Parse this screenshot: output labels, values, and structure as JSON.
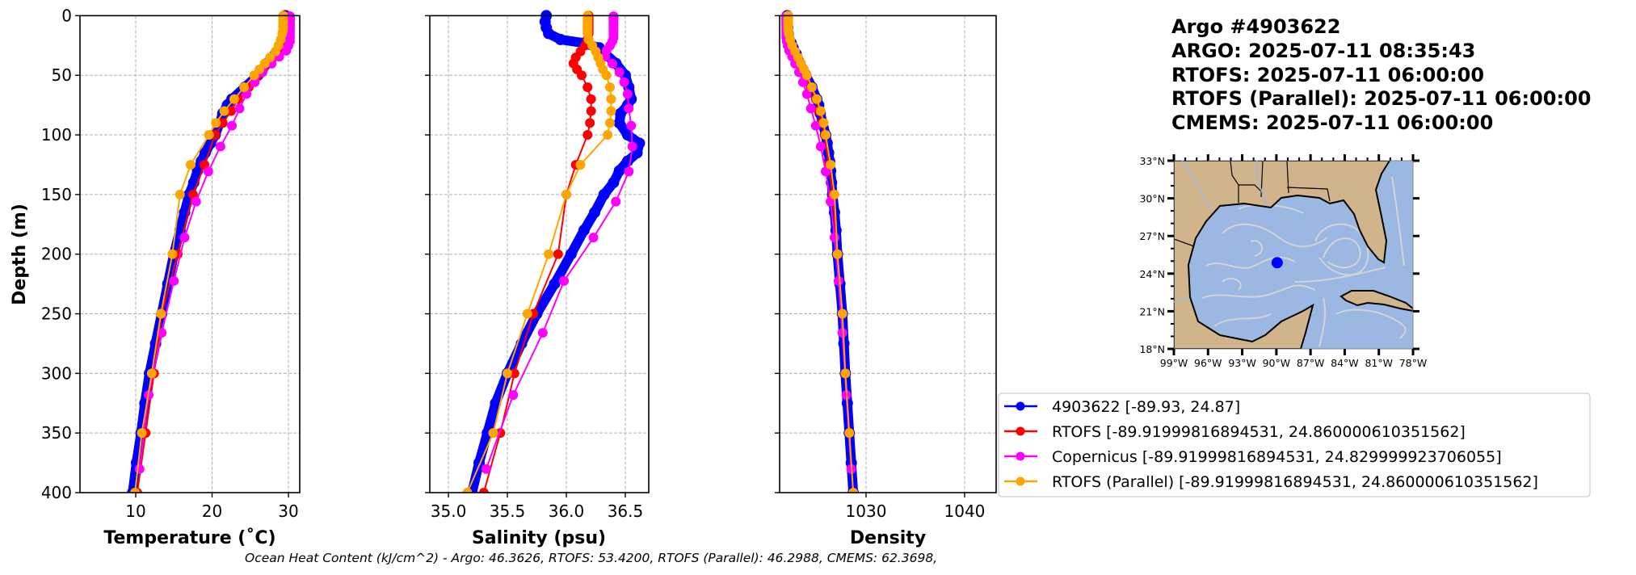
{
  "chart_data": {
    "type": "line",
    "title_lines": [
      "Argo #4903622",
      "ARGO:  2025-07-11 08:35:43",
      "RTOFS: 2025-07-11 06:00:00",
      "RTOFS (Parallel): 2025-07-11 06:00:00",
      "CMEMS: 2025-07-11 06:00:00"
    ],
    "ylabel": "Depth (m)",
    "ylim": [
      400,
      0
    ],
    "yticks": [
      0,
      50,
      100,
      150,
      200,
      250,
      300,
      350,
      400
    ],
    "ytick_labels": [
      "0",
      "50",
      "100",
      "150",
      "200",
      "250",
      "300",
      "350",
      "400"
    ],
    "grid": true,
    "panels": [
      {
        "variable": "temperature",
        "xlabel": "Temperature (˚C)",
        "xlim": [
          2.7,
          31.48
        ],
        "xticks": [
          10,
          20,
          30
        ],
        "xtick_labels": [
          "10",
          "20",
          "30"
        ]
      },
      {
        "variable": "salinity",
        "xlabel": "Salinity (psu)",
        "xlim": [
          34.842,
          36.699
        ],
        "xticks": [
          35.0,
          35.5,
          36.0,
          36.5
        ],
        "xtick_labels": [
          "35.0",
          "35.5",
          "36.0",
          "36.5"
        ]
      },
      {
        "variable": "density",
        "xlabel": "Density",
        "xlim": [
          1021.23,
          1043.2
        ],
        "xticks": [
          1030,
          1040
        ],
        "xtick_labels": [
          "1030",
          "1040"
        ]
      }
    ],
    "legend_placement": "lower-right",
    "series": [
      {
        "name": "Argo",
        "legend_label": "4903622 [-89.93, 24.87]",
        "color": "#0000ff",
        "depth": [
          0,
          5,
          10,
          15,
          20,
          23,
          27,
          32,
          40,
          50,
          60,
          70,
          75,
          82,
          90,
          100,
          107,
          115,
          122,
          130,
          140,
          150,
          165,
          180,
          200,
          225,
          250,
          275,
          300,
          325,
          350,
          375,
          400
        ],
        "temperature": [
          29.6,
          29.6,
          29.6,
          29.5,
          29.4,
          29.2,
          28.9,
          28.3,
          27.2,
          26.0,
          24.3,
          22.6,
          22.0,
          21.4,
          21.0,
          20.4,
          19.8,
          19.1,
          18.6,
          18.1,
          17.6,
          17.0,
          16.4,
          15.8,
          15.0,
          14.2,
          13.4,
          12.6,
          11.8,
          11.2,
          10.7,
          10.1,
          9.6
        ],
        "salinity": [
          35.83,
          35.82,
          35.83,
          35.85,
          35.95,
          36.15,
          36.28,
          36.33,
          36.42,
          36.5,
          36.53,
          36.55,
          36.52,
          36.46,
          36.45,
          36.52,
          36.62,
          36.6,
          36.52,
          36.45,
          36.4,
          36.32,
          36.24,
          36.15,
          36.04,
          35.9,
          35.75,
          35.62,
          35.5,
          35.4,
          35.33,
          35.26,
          35.2
        ],
        "density": [
          1022.0,
          1022.0,
          1022.05,
          1022.1,
          1022.2,
          1022.4,
          1022.6,
          1022.9,
          1023.3,
          1023.9,
          1024.5,
          1025.0,
          1025.2,
          1025.35,
          1025.6,
          1025.9,
          1026.05,
          1026.2,
          1026.3,
          1026.4,
          1026.5,
          1026.6,
          1026.8,
          1026.95,
          1027.1,
          1027.35,
          1027.6,
          1027.75,
          1027.9,
          1028.1,
          1028.3,
          1028.5,
          1028.7
        ]
      },
      {
        "name": "RTOFS",
        "legend_label": "RTOFS [-89.91999816894531, 24.860000610351562]",
        "color": "#ff0000",
        "depth": [
          0,
          2,
          4,
          6,
          8,
          10,
          12,
          15,
          20,
          25,
          30,
          35,
          40,
          45,
          50,
          60,
          70,
          80,
          90,
          100,
          125,
          150,
          200,
          250,
          300,
          350,
          400
        ],
        "temperature": [
          29.4,
          29.4,
          29.4,
          29.4,
          29.4,
          29.4,
          29.4,
          29.3,
          29.2,
          29.0,
          28.6,
          28.0,
          27.3,
          26.7,
          26.0,
          24.8,
          23.4,
          22.5,
          21.4,
          20.4,
          19.0,
          17.5,
          15.5,
          13.4,
          12.4,
          11.3,
          10.2
        ],
        "salinity": [
          36.19,
          36.19,
          36.19,
          36.19,
          36.19,
          36.19,
          36.19,
          36.19,
          36.18,
          36.16,
          36.12,
          36.08,
          36.06,
          36.09,
          36.13,
          36.18,
          36.21,
          36.21,
          36.2,
          36.18,
          36.08,
          36.0,
          35.93,
          35.72,
          35.56,
          35.44,
          35.3
        ],
        "density": [
          1022.1,
          1022.1,
          1022.1,
          1022.1,
          1022.1,
          1022.1,
          1022.1,
          1022.15,
          1022.25,
          1022.4,
          1022.65,
          1022.95,
          1023.3,
          1023.6,
          1023.9,
          1024.4,
          1024.9,
          1025.2,
          1025.5,
          1025.8,
          1026.2,
          1026.6,
          1027.1,
          1027.6,
          1027.9,
          1028.3,
          1028.7
        ]
      },
      {
        "name": "Copernicus",
        "legend_label": "Copernicus [-89.91999816894531, 24.829999923706055]",
        "color": "#ff00ff",
        "depth": [
          0.5,
          1.5,
          2.6,
          3.8,
          5.1,
          6.4,
          7.9,
          9.6,
          11.4,
          13.5,
          15.8,
          18.5,
          21.6,
          25.2,
          29.4,
          34.4,
          40.3,
          47.4,
          55.8,
          65.8,
          77.9,
          92.3,
          109.7,
          130.7,
          155.9,
          186.1,
          222.5,
          266.0,
          318.1,
          380.2
        ],
        "temperature": [
          30.2,
          30.2,
          30.2,
          30.2,
          30.2,
          30.2,
          30.2,
          30.2,
          30.2,
          30.2,
          30.2,
          30.2,
          30.2,
          30.0,
          29.7,
          28.8,
          27.8,
          26.6,
          25.6,
          24.5,
          23.6,
          22.6,
          21.1,
          19.5,
          17.9,
          16.4,
          15.0,
          13.4,
          11.7,
          10.5
        ],
        "salinity": [
          36.4,
          36.4,
          36.4,
          36.4,
          36.4,
          36.4,
          36.4,
          36.4,
          36.4,
          36.4,
          36.4,
          36.4,
          36.39,
          36.37,
          36.34,
          36.33,
          36.39,
          36.45,
          36.49,
          36.52,
          36.53,
          36.55,
          36.56,
          36.53,
          36.42,
          36.23,
          35.98,
          35.8,
          35.55,
          35.32
        ],
        "density": [
          1021.9,
          1021.9,
          1021.9,
          1021.9,
          1021.9,
          1021.9,
          1021.9,
          1021.9,
          1021.9,
          1021.9,
          1021.9,
          1021.9,
          1021.95,
          1022.05,
          1022.2,
          1022.5,
          1022.8,
          1023.2,
          1023.6,
          1024.0,
          1024.4,
          1024.9,
          1025.4,
          1025.9,
          1026.4,
          1026.8,
          1027.2,
          1027.6,
          1028.0,
          1028.5
        ]
      },
      {
        "name": "RTOFS (Parallel)",
        "legend_label": "RTOFS (Parallel) [-89.91999816894531, 24.860000610351562]",
        "color": "#ffa500",
        "depth": [
          0,
          2,
          4,
          6,
          8,
          10,
          12,
          15,
          20,
          25,
          30,
          35,
          40,
          45,
          50,
          60,
          70,
          80,
          90,
          100,
          125,
          150,
          200,
          250,
          300,
          350,
          400
        ],
        "temperature": [
          29.3,
          29.3,
          29.3,
          29.3,
          29.3,
          29.3,
          29.3,
          29.2,
          29.0,
          28.7,
          28.3,
          27.6,
          26.9,
          26.2,
          25.5,
          24.2,
          22.9,
          21.6,
          20.5,
          19.6,
          17.2,
          15.8,
          14.8,
          13.3,
          12.1,
          10.8,
          9.9
        ],
        "salinity": [
          36.18,
          36.18,
          36.18,
          36.18,
          36.18,
          36.18,
          36.18,
          36.18,
          36.19,
          36.22,
          36.25,
          36.27,
          36.29,
          36.31,
          36.34,
          36.37,
          36.38,
          36.38,
          36.37,
          36.35,
          36.12,
          36.0,
          35.85,
          35.67,
          35.5,
          35.38,
          35.16
        ],
        "density": [
          1022.1,
          1022.1,
          1022.1,
          1022.1,
          1022.1,
          1022.1,
          1022.1,
          1022.15,
          1022.3,
          1022.5,
          1022.8,
          1023.1,
          1023.4,
          1023.7,
          1024.0,
          1024.5,
          1025.0,
          1025.4,
          1025.7,
          1025.9,
          1026.4,
          1026.8,
          1027.1,
          1027.6,
          1027.9,
          1028.3,
          1028.7
        ]
      }
    ],
    "map": {
      "lat_labels": [
        "33°N",
        "30°N",
        "27°N",
        "24°N",
        "21°N",
        "18°N"
      ],
      "lon_labels": [
        "99°W",
        "96°W",
        "93°W",
        "90°W",
        "87°W",
        "84°W",
        "81°W",
        "78°W"
      ],
      "lat_range": [
        18,
        33
      ],
      "lon_range": [
        -99,
        -78
      ],
      "float_position": {
        "lon": -89.93,
        "lat": 24.87
      },
      "land_color": "#d2b48c",
      "water_color": "#9bb8e3",
      "streamline_color": "#d3d3d3"
    }
  },
  "caption": "Ocean Heat Content (kJ/cm^2) - Argo: 46.3626,  RTOFS: 53.4200,  RTOFS (Parallel): 46.2988,  CMEMS: 62.3698,"
}
